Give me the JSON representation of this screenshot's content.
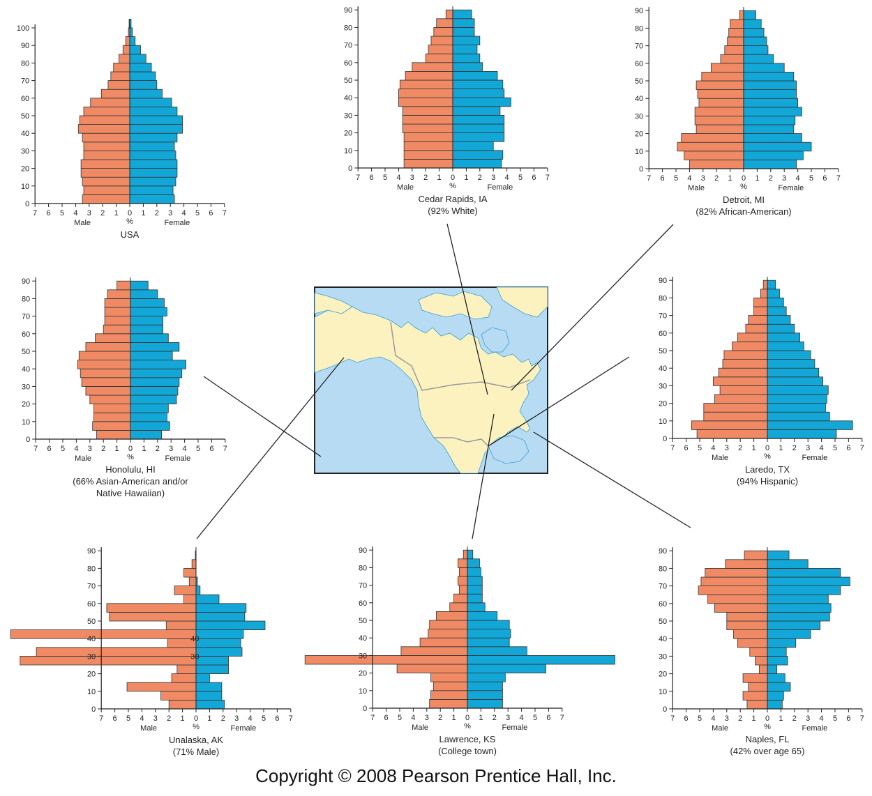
{
  "colors": {
    "male": "#f08a64",
    "female": "#12a7d6",
    "axis": "#222222",
    "land": "#fbf2c0",
    "water": "#b6dbf2",
    "border": "#9a9a9a"
  },
  "axis_labels": {
    "male": "Male",
    "percent": "%",
    "female": "Female"
  },
  "copyright": "Copyright © 2008 Pearson Prentice Hall, Inc.",
  "chart_data": [
    {
      "type": "bar",
      "id": "usa",
      "title": "USA",
      "subtitle": [],
      "x_ticks": [
        7,
        6,
        5,
        4,
        3,
        2,
        1,
        0,
        1,
        2,
        3,
        4,
        5,
        6,
        7
      ],
      "y_ticks": [
        0,
        10,
        20,
        30,
        40,
        50,
        60,
        70,
        80,
        90,
        100
      ],
      "age_groups": [
        0,
        5,
        10,
        15,
        20,
        25,
        30,
        35,
        40,
        45,
        50,
        55,
        60,
        65,
        70,
        75,
        80,
        85,
        90,
        95,
        100
      ],
      "male": [
        3.5,
        3.4,
        3.5,
        3.6,
        3.6,
        3.4,
        3.4,
        3.5,
        3.8,
        3.7,
        3.4,
        2.9,
        2.1,
        1.6,
        1.4,
        1.2,
        0.8,
        0.5,
        0.3,
        0.1,
        0.05
      ],
      "female": [
        3.3,
        3.2,
        3.4,
        3.5,
        3.5,
        3.4,
        3.3,
        3.5,
        3.9,
        3.9,
        3.5,
        3.1,
        2.4,
        2.0,
        1.9,
        1.6,
        1.2,
        0.8,
        0.4,
        0.2,
        0.1
      ]
    },
    {
      "type": "bar",
      "id": "cedar",
      "title": "Cedar Rapids, IA",
      "subtitle": [
        "(92% White)"
      ],
      "x_ticks": [
        7,
        6,
        5,
        4,
        3,
        2,
        1,
        0,
        1,
        2,
        3,
        4,
        5,
        6,
        7
      ],
      "y_ticks": [
        0,
        10,
        20,
        30,
        40,
        50,
        60,
        70,
        80,
        90
      ],
      "age_groups": [
        0,
        5,
        10,
        15,
        20,
        25,
        30,
        35,
        40,
        45,
        50,
        55,
        60,
        65,
        70,
        75,
        80,
        85
      ],
      "male": [
        3.6,
        3.6,
        3.6,
        3.6,
        3.7,
        3.7,
        3.7,
        4.0,
        4.0,
        3.9,
        3.5,
        3.0,
        2.0,
        1.8,
        1.6,
        1.4,
        1.2,
        0.5
      ],
      "female": [
        3.6,
        3.7,
        3.0,
        3.8,
        3.8,
        3.8,
        3.5,
        4.3,
        3.8,
        3.7,
        3.3,
        2.2,
        2.0,
        1.8,
        2.0,
        1.6,
        1.6,
        1.4
      ]
    },
    {
      "type": "bar",
      "id": "detroit",
      "title": "Detroit, MI",
      "subtitle": [
        "(82% African-American)"
      ],
      "x_ticks": [
        7,
        6,
        5,
        4,
        3,
        2,
        1,
        0,
        1,
        2,
        3,
        4,
        5,
        6,
        7
      ],
      "y_ticks": [
        0,
        10,
        20,
        30,
        40,
        50,
        60,
        70,
        80,
        90
      ],
      "age_groups": [
        0,
        5,
        10,
        15,
        20,
        25,
        30,
        35,
        40,
        45,
        50,
        55,
        60,
        65,
        70,
        75,
        80,
        85
      ],
      "male": [
        4.0,
        4.4,
        4.9,
        4.6,
        3.5,
        3.6,
        3.6,
        3.3,
        3.4,
        3.5,
        3.1,
        2.4,
        1.7,
        1.4,
        1.2,
        1.1,
        1.0,
        0.3
      ],
      "female": [
        3.9,
        4.4,
        5.0,
        4.3,
        3.7,
        3.8,
        4.3,
        4.0,
        3.9,
        3.9,
        3.7,
        3.0,
        2.2,
        1.8,
        1.7,
        1.5,
        1.3,
        0.9
      ]
    },
    {
      "type": "bar",
      "id": "honolulu",
      "title": "Honolulu, HI",
      "subtitle": [
        "(66% Asian-American and/or",
        "Native Hawaiian)"
      ],
      "x_ticks": [
        7,
        6,
        5,
        4,
        3,
        2,
        1,
        0,
        1,
        2,
        3,
        4,
        5,
        6,
        7
      ],
      "y_ticks": [
        0,
        10,
        20,
        30,
        40,
        50,
        60,
        70,
        80,
        90
      ],
      "age_groups": [
        0,
        5,
        10,
        15,
        20,
        25,
        30,
        35,
        40,
        45,
        50,
        55,
        60,
        65,
        70,
        75,
        80,
        85
      ],
      "male": [
        2.5,
        2.8,
        2.7,
        2.7,
        3.0,
        3.3,
        3.6,
        3.7,
        3.9,
        3.8,
        3.3,
        2.6,
        2.0,
        1.9,
        1.9,
        1.9,
        1.7,
        1.0
      ],
      "female": [
        2.3,
        2.9,
        2.7,
        2.8,
        3.4,
        3.5,
        3.6,
        3.8,
        4.1,
        3.1,
        3.6,
        2.8,
        2.4,
        2.4,
        2.7,
        2.5,
        2.0,
        1.3
      ]
    },
    {
      "type": "bar",
      "id": "laredo",
      "title": "Laredo, TX",
      "subtitle": [
        "(94% Hispanic)"
      ],
      "x_ticks": [
        7,
        6,
        5,
        4,
        3,
        2,
        1,
        0,
        1,
        2,
        3,
        4,
        5,
        6,
        7
      ],
      "y_ticks": [
        0,
        10,
        20,
        30,
        40,
        50,
        60,
        70,
        80,
        90
      ],
      "age_groups": [
        0,
        5,
        10,
        15,
        20,
        25,
        30,
        35,
        40,
        45,
        50,
        55,
        60,
        65,
        70,
        75,
        80,
        85
      ],
      "male": [
        5.2,
        5.6,
        4.7,
        4.7,
        3.9,
        3.5,
        4.0,
        3.6,
        3.3,
        3.2,
        2.6,
        2.2,
        1.6,
        1.4,
        1.0,
        1.0,
        0.5,
        0.3
      ],
      "female": [
        5.1,
        6.3,
        4.6,
        4.3,
        4.4,
        4.5,
        4.1,
        3.8,
        3.5,
        3.2,
        2.7,
        2.4,
        2.0,
        1.7,
        1.4,
        1.2,
        0.9,
        0.6
      ]
    },
    {
      "type": "bar",
      "id": "unalaska",
      "title": "Unalaska, AK",
      "subtitle": [
        "(71% Male)"
      ],
      "x_ticks": [
        7,
        6,
        5,
        4,
        3,
        2,
        1,
        0,
        1,
        2,
        3,
        4,
        5,
        6,
        7
      ],
      "y_ticks": [
        0,
        10,
        20,
        30,
        40,
        50,
        60,
        70,
        80,
        90
      ],
      "age_groups": [
        0,
        5,
        10,
        15,
        20,
        25,
        30,
        35,
        40,
        45,
        50,
        55,
        60,
        65,
        70,
        75,
        80,
        85
      ],
      "male": [
        2.0,
        2.6,
        5.1,
        1.8,
        1.4,
        13.0,
        11.8,
        2.1,
        13.7,
        2.2,
        6.4,
        6.6,
        0.9,
        1.6,
        0.5,
        0.9,
        0.3,
        0.05
      ],
      "female": [
        2.1,
        1.9,
        1.9,
        1.0,
        2.4,
        2.4,
        3.4,
        3.3,
        3.5,
        5.1,
        3.6,
        3.7,
        1.7,
        0.3,
        0.1,
        0.0,
        0.0,
        0.0
      ],
      "annotations": [
        {
          "age": 30,
          "text": "30"
        },
        {
          "age": 40,
          "text": "40"
        }
      ]
    },
    {
      "type": "bar",
      "id": "lawrence",
      "title": "Lawrence, KS",
      "subtitle": [
        "(College town)"
      ],
      "x_ticks": [
        7,
        6,
        5,
        4,
        3,
        2,
        1,
        0,
        1,
        2,
        3,
        4,
        5,
        6,
        7
      ],
      "y_ticks": [
        0,
        10,
        20,
        30,
        40,
        50,
        60,
        70,
        80,
        90
      ],
      "age_groups": [
        0,
        5,
        10,
        15,
        20,
        25,
        30,
        35,
        40,
        45,
        50,
        55,
        60,
        65,
        70,
        75,
        80,
        85
      ],
      "male": [
        2.8,
        2.7,
        2.5,
        2.7,
        5.2,
        12.0,
        4.9,
        3.5,
        2.9,
        2.8,
        2.3,
        1.3,
        1.0,
        0.6,
        0.7,
        0.6,
        0.7,
        0.3
      ],
      "female": [
        2.6,
        2.6,
        2.6,
        2.8,
        5.8,
        10.9,
        4.4,
        3.1,
        3.2,
        3.1,
        2.2,
        1.3,
        1.1,
        1.1,
        1.1,
        1.0,
        0.9,
        0.4
      ]
    },
    {
      "type": "bar",
      "id": "naples",
      "title": "Naples, FL",
      "subtitle": [
        "(42% over age 65)"
      ],
      "x_ticks": [
        7,
        6,
        5,
        4,
        3,
        2,
        1,
        0,
        1,
        2,
        3,
        4,
        5,
        6,
        7
      ],
      "y_ticks": [
        0,
        10,
        20,
        30,
        40,
        50,
        60,
        70,
        80,
        90
      ],
      "age_groups": [
        0,
        5,
        10,
        15,
        20,
        25,
        30,
        35,
        40,
        45,
        50,
        55,
        60,
        65,
        70,
        75,
        80,
        85
      ],
      "male": [
        1.5,
        1.8,
        1.4,
        1.8,
        0.6,
        0.9,
        1.3,
        2.2,
        2.5,
        3.0,
        3.0,
        3.9,
        4.4,
        5.1,
        4.9,
        4.6,
        3.1,
        1.7
      ],
      "female": [
        1.1,
        1.2,
        1.7,
        1.3,
        0.7,
        1.5,
        1.4,
        2.1,
        3.2,
        3.9,
        4.6,
        4.7,
        4.5,
        5.4,
        6.1,
        5.4,
        3.0,
        1.6
      ]
    }
  ]
}
